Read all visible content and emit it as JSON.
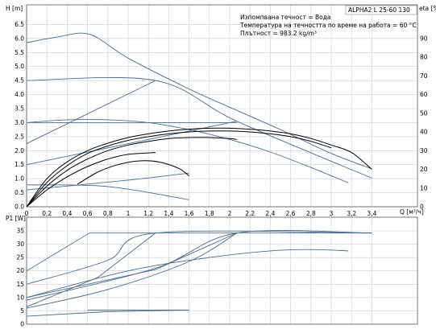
{
  "chart_data": [
    {
      "type": "line",
      "title": "ALPHA2 L 25-60 130",
      "annotations": [
        "Изпомпвана течност = Вода",
        "Температура на течността по време на работа = 60 °C",
        "Плътност = 983.2 kg/m³"
      ],
      "xlabel": "Q [м³/ч]",
      "ylabel": "H [m]",
      "y2label": "eta [%]",
      "xlim": [
        0,
        3.6
      ],
      "ylim": [
        0,
        7
      ],
      "y2lim": [
        0,
        105
      ],
      "x_ticks": [
        "0",
        "0,2",
        "0,4",
        "0,6",
        "0,8",
        "1",
        "1,2",
        "1,4",
        "1,6",
        "1,8",
        "2",
        "2,2",
        "2,4",
        "2,6",
        "2,8",
        "3",
        "3,2",
        "3,4"
      ],
      "y_ticks": [
        "0.0",
        "0.5",
        "1.0",
        "1.5",
        "2.0",
        "2.5",
        "3.0",
        "3.5",
        "4.0",
        "4.5",
        "5.0",
        "5.5",
        "6.0",
        "6.5"
      ],
      "y2_ticks": [
        "0",
        "10",
        "20",
        "30",
        "40",
        "50",
        "60",
        "70",
        "80",
        "90"
      ],
      "grid": true,
      "series": [
        {
          "axis": "left",
          "color": "#4d6a8c",
          "x": [
            0,
            0.3,
            0.62,
            1.0,
            1.6,
            2.0,
            2.5,
            3.0,
            3.4
          ],
          "y": [
            5.85,
            6.05,
            6.15,
            5.3,
            4.2,
            3.55,
            2.75,
            1.9,
            1.35
          ]
        },
        {
          "axis": "left",
          "color": "#4d6a8c",
          "x": [
            0,
            1.27,
            2.07,
            3.4
          ],
          "y": [
            4.5,
            4.5,
            3.05,
            1.02
          ]
        },
        {
          "axis": "left",
          "color": "#4d6a8c",
          "x": [
            0,
            1.27
          ],
          "y": [
            2.25,
            4.5
          ]
        },
        {
          "axis": "left",
          "color": "#4d6a8c",
          "x": [
            0,
            0.4,
            0.8,
            1.2,
            1.6,
            2.0,
            2.4,
            2.8,
            3.17
          ],
          "y": [
            3.0,
            3.1,
            3.1,
            3.0,
            2.75,
            2.4,
            1.95,
            1.4,
            0.85
          ]
        },
        {
          "axis": "left",
          "color": "#4d6a8c",
          "x": [
            0,
            2.07
          ],
          "y": [
            3.0,
            3.0
          ]
        },
        {
          "axis": "left",
          "color": "#4d6a8c",
          "x": [
            0,
            2.07
          ],
          "y": [
            1.5,
            3.05
          ]
        },
        {
          "axis": "left",
          "color": "#4d6a8c",
          "x": [
            0,
            0.8,
            1.6
          ],
          "y": [
            0.78,
            0.72,
            0.25
          ]
        },
        {
          "axis": "left",
          "color": "#4d6a8c",
          "x": [
            0,
            1.0,
            1.6
          ],
          "y": [
            0.6,
            0.95,
            1.2
          ]
        },
        {
          "axis": "right",
          "color": "#000000",
          "x": [
            0,
            0.2,
            0.4,
            0.6,
            0.8,
            1.0,
            1.2,
            1.4,
            1.6,
            1.8,
            2.0,
            2.2,
            2.4,
            2.6,
            2.8,
            3.0,
            3.2,
            3.4
          ],
          "y": [
            0,
            15,
            24,
            30,
            34,
            37,
            39,
            40.5,
            41.5,
            42,
            42,
            41.5,
            40.5,
            39,
            36.5,
            33,
            29,
            20
          ]
        },
        {
          "axis": "right",
          "color": "#000000",
          "x": [
            0,
            0.2,
            0.4,
            0.6,
            0.8,
            1.0,
            1.2,
            1.4,
            1.6,
            1.8,
            2.0,
            2.2,
            2.4,
            2.6,
            2.8,
            3.0
          ],
          "y": [
            0,
            13,
            22,
            28.5,
            32.5,
            35.5,
            37.5,
            39,
            40,
            40.5,
            40.5,
            40,
            39,
            37.5,
            35,
            31.5
          ]
        },
        {
          "axis": "right",
          "color": "#000000",
          "x": [
            0,
            0.2,
            0.4,
            0.6,
            0.8,
            1.0,
            1.2,
            1.4,
            1.6,
            1.8,
            2.0,
            2.07
          ],
          "y": [
            0,
            11,
            19.5,
            25.5,
            30,
            33,
            35,
            36.5,
            37,
            37,
            36.5,
            36
          ]
        },
        {
          "axis": "right",
          "color": "#000000",
          "x": [
            0,
            0.2,
            0.4,
            0.6,
            0.8,
            1.0,
            1.27
          ],
          "y": [
            0,
            9,
            16,
            21.5,
            25.5,
            28,
            29
          ]
        },
        {
          "axis": "right",
          "color": "#000000",
          "x": [
            0.5,
            0.7,
            0.9,
            1.1,
            1.3,
            1.5,
            1.6
          ],
          "y": [
            12,
            18.5,
            22.5,
            24.5,
            24,
            20.5,
            16.5
          ]
        }
      ]
    },
    {
      "type": "line",
      "ylabel": "P1 [W]",
      "xlim": [
        0,
        3.6
      ],
      "ylim": [
        0,
        40
      ],
      "y_ticks": [
        "0",
        "5",
        "10",
        "15",
        "20",
        "25",
        "30",
        "35"
      ],
      "grid": true,
      "series": [
        {
          "color": "#4d6a8c",
          "x": [
            0,
            0.62,
            3.4
          ],
          "y": [
            20,
            34.2,
            34.2
          ]
        },
        {
          "color": "#4d6a8c",
          "x": [
            0,
            0.8,
            1.27,
            3.4
          ],
          "y": [
            15,
            24,
            34.2,
            34.2
          ]
        },
        {
          "color": "#4d6a8c",
          "x": [
            0,
            0.7,
            1.27
          ],
          "y": [
            6.5,
            17.5,
            34.2
          ]
        },
        {
          "color": "#4d6a8c",
          "x": [
            0,
            1.27,
            2.07,
            3.4
          ],
          "y": [
            9,
            21,
            34.2,
            34.2
          ]
        },
        {
          "color": "#4d6a8c",
          "x": [
            0,
            1.27,
            2.07
          ],
          "y": [
            10,
            20.5,
            34.2
          ]
        },
        {
          "color": "#4d6a8c",
          "x": [
            0,
            0.8,
            1.6,
            2.07
          ],
          "y": [
            6,
            13,
            23.5,
            34.2
          ]
        },
        {
          "color": "#4d6a8c",
          "x": [
            0,
            1.0,
            1.8,
            2.4,
            2.8,
            3.17
          ],
          "y": [
            10,
            20,
            25,
            27.5,
            28,
            27.5
          ]
        },
        {
          "color": "#4d6a8c",
          "x": [
            0,
            0.8,
            1.6
          ],
          "y": [
            3,
            4.7,
            5.3
          ]
        },
        {
          "color": "#4d6a8c",
          "x": [
            0.6,
            1.6
          ],
          "y": [
            5.3,
            5.3
          ]
        }
      ]
    }
  ]
}
